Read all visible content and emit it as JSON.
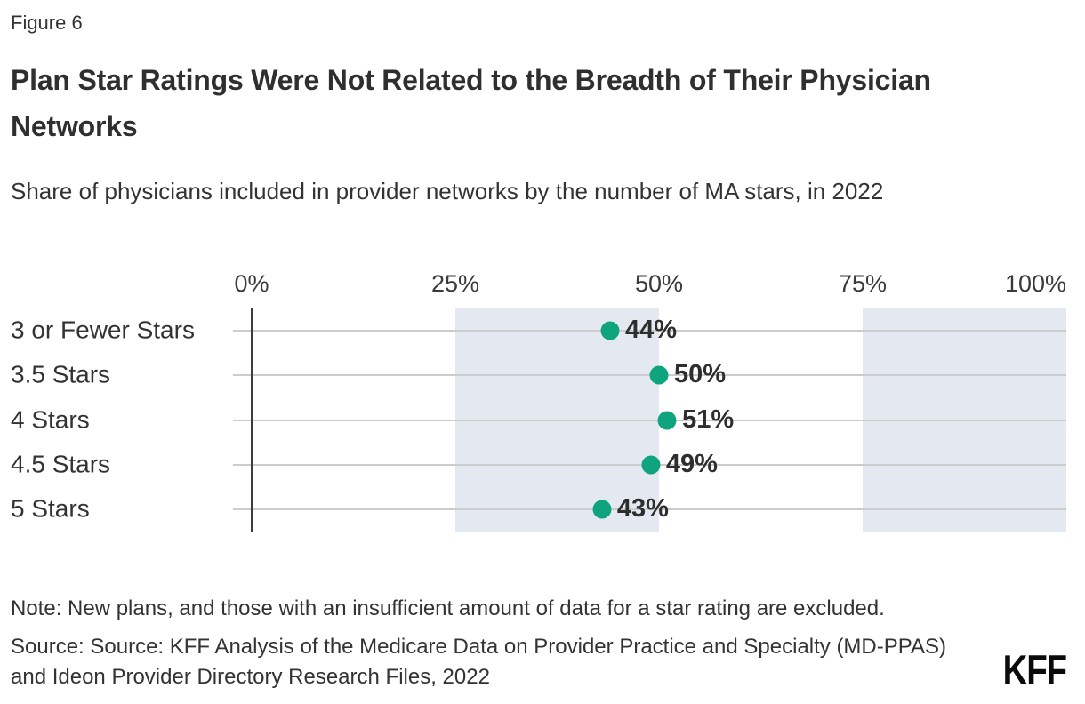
{
  "figure_label": "Figure 6",
  "title": "Plan Star Ratings Were Not Related to the Breadth of Their Physician Networks",
  "subtitle": "Share of physicians included in provider networks by the number of MA stars, in 2022",
  "note": "Note: New plans, and those with an insufficient amount of data for a star rating are excluded.",
  "source": "Source: Source: KFF Analysis of the Medicare Data on Provider Practice and Specialty (MD-PPAS) and Ideon Provider Directory Research Files, 2022",
  "logo_text": "KFF",
  "colors": {
    "dot_green": "#0fa47d",
    "band_blue": "#e4e9f1",
    "gridline_gray": "#cccccc",
    "axis_dark": "#3d3d3d",
    "text_dark": "#333333"
  },
  "chart_data": {
    "type": "scatter",
    "subtype": "horizontal-dot-plot",
    "title": "Plan Star Ratings Were Not Related to the Breadth of Their Physician Networks",
    "subtitle": "Share of physicians included in provider networks by the number of MA stars, in 2022",
    "categories": [
      "3 or Fewer Stars",
      "3.5 Stars",
      "4 Stars",
      "4.5 Stars",
      "5 Stars"
    ],
    "values": [
      44,
      50,
      51,
      49,
      43
    ],
    "value_labels": [
      "44%",
      "50%",
      "51%",
      "49%",
      "43%"
    ],
    "xlabel": "",
    "ylabel": "",
    "xlim": [
      0,
      100
    ],
    "x_ticks": [
      {
        "label": "0%",
        "value": 0
      },
      {
        "label": "25%",
        "value": 25
      },
      {
        "label": "50%",
        "value": 50
      },
      {
        "label": "75%",
        "value": 75
      },
      {
        "label": "100%",
        "value": 100
      }
    ],
    "shaded_bands": [
      {
        "from": 25,
        "to": 50
      },
      {
        "from": 75,
        "to": 100
      }
    ],
    "grid": true,
    "legend_position": "none"
  }
}
